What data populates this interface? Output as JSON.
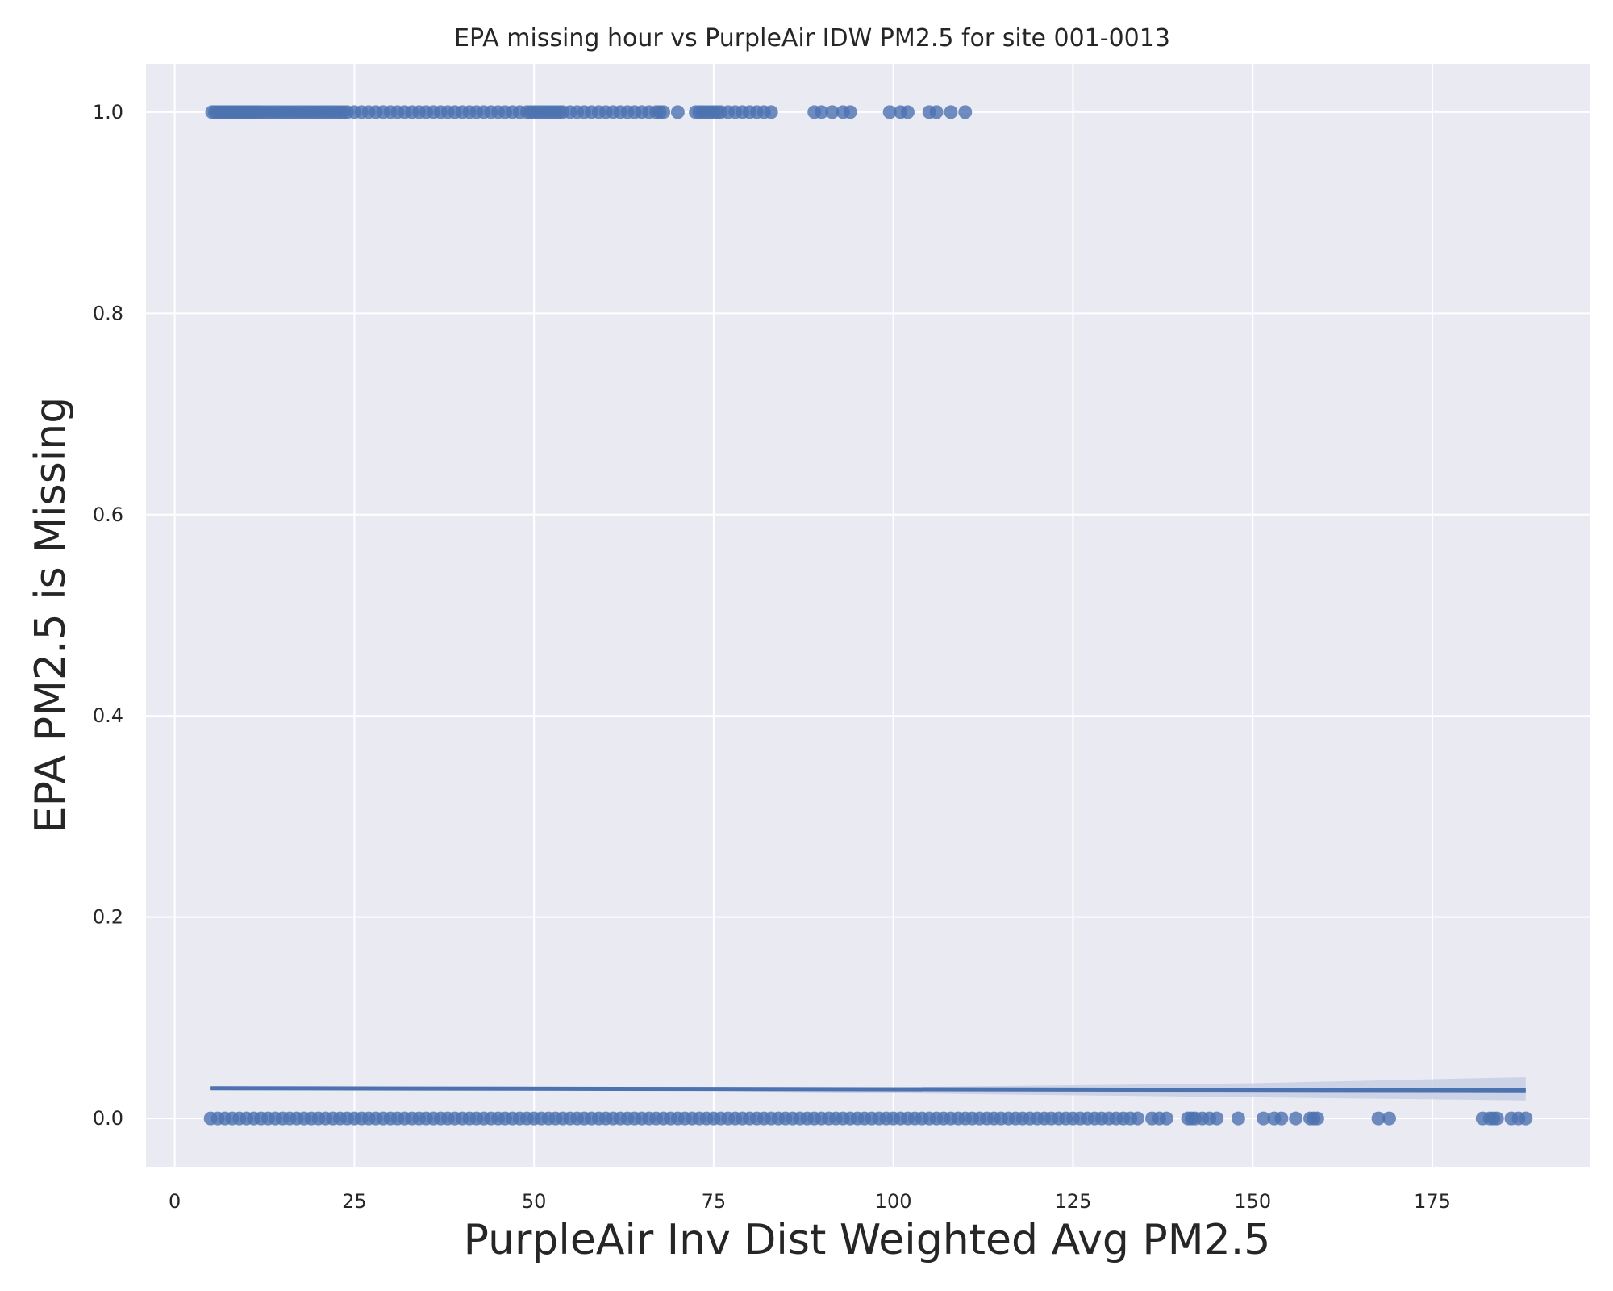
{
  "chart_data": {
    "type": "scatter",
    "title": "EPA missing hour vs PurpleAir IDW PM2.5 for site 001-0013",
    "xlabel": "PurpleAir Inv Dist Weighted Avg PM2.5",
    "ylabel": "EPA PM2.5 is Missing",
    "xlim": [
      -4,
      197
    ],
    "ylim": [
      -0.048,
      1.048
    ],
    "xticks": [
      0,
      25,
      50,
      75,
      100,
      125,
      150,
      175
    ],
    "xtick_labels": [
      "0",
      "25",
      "50",
      "75",
      "100",
      "125",
      "150",
      "175"
    ],
    "yticks": [
      0.0,
      0.2,
      0.4,
      0.6,
      0.8,
      1.0
    ],
    "ytick_labels": [
      "0.0",
      "0.2",
      "0.4",
      "0.6",
      "0.8",
      "1.0"
    ],
    "grid": true,
    "colors": {
      "background": "#eaeaf2",
      "grid": "#ffffff",
      "points": "#4c72b0",
      "fit_line": "#4c72b0",
      "ci_band": "#c8cfe4"
    },
    "series": [
      {
        "y": 1,
        "x": [
          5.2,
          5.6,
          6,
          6.4,
          6.8,
          7.2,
          7.6,
          8,
          8.4,
          8.8,
          9.2,
          9.6,
          10,
          10.4,
          10.8,
          11.2,
          11.6,
          12,
          12.5,
          13,
          13.5,
          14,
          14.5,
          15,
          15.5,
          16,
          16.5,
          17,
          17.5,
          18,
          18.5,
          19,
          19.5,
          20,
          20.5,
          21,
          21.5,
          22,
          22.5,
          23,
          23.5,
          24,
          25,
          26,
          27,
          28,
          29,
          30,
          31,
          32,
          33,
          34,
          35,
          36,
          37,
          38,
          39,
          40,
          41,
          42,
          43,
          44,
          45,
          46,
          47,
          48,
          49,
          49.5,
          50,
          50.5,
          51,
          51.5,
          52,
          52.5,
          53,
          53.5,
          54,
          55,
          56,
          57,
          58,
          59,
          60,
          61,
          62,
          63,
          64,
          65,
          66,
          67,
          67.5,
          68,
          70,
          72.5,
          73,
          73.5,
          74,
          74.5,
          75,
          75.5,
          76,
          77,
          78,
          79,
          80,
          81,
          82,
          83,
          89,
          90,
          91.5,
          93,
          94,
          99.5,
          101,
          102,
          105,
          106,
          108,
          110
        ]
      },
      {
        "y": 0,
        "x": [
          5,
          6,
          7,
          8,
          9,
          10,
          11,
          12,
          13,
          14,
          15,
          16,
          17,
          18,
          19,
          20,
          21,
          22,
          23,
          24,
          25,
          26,
          27,
          28,
          29,
          30,
          31,
          32,
          33,
          34,
          35,
          36,
          37,
          38,
          39,
          40,
          41,
          42,
          43,
          44,
          45,
          46,
          47,
          48,
          49,
          50,
          51,
          52,
          53,
          54,
          55,
          56,
          57,
          58,
          59,
          60,
          61,
          62,
          63,
          64,
          65,
          66,
          67,
          68,
          69,
          70,
          71,
          72,
          73,
          74,
          75,
          76,
          77,
          78,
          79,
          80,
          81,
          82,
          83,
          84,
          85,
          86,
          87,
          88,
          89,
          90,
          91,
          92,
          93,
          94,
          95,
          96,
          97,
          98,
          99,
          100,
          101,
          102,
          103,
          104,
          105,
          106,
          107,
          108,
          109,
          110,
          111,
          112,
          113,
          114,
          115,
          116,
          117,
          118,
          119,
          120,
          121,
          122,
          123,
          124,
          125,
          126,
          127,
          128,
          129,
          130,
          131,
          132,
          133,
          134,
          136,
          137,
          138,
          141,
          141.5,
          142,
          143,
          144,
          145,
          148,
          151.5,
          153,
          154,
          156,
          158,
          158.5,
          159,
          167.5,
          169,
          182,
          183,
          183.5,
          184,
          186,
          187,
          188
        ]
      }
    ],
    "fit_line": {
      "x": [
        5,
        188
      ],
      "y": [
        0.03,
        0.028
      ]
    },
    "ci_band": {
      "x": [
        5,
        60,
        100,
        150,
        188
      ],
      "lower": [
        0.029,
        0.0285,
        0.025,
        0.021,
        0.018
      ],
      "upper": [
        0.031,
        0.0305,
        0.031,
        0.035,
        0.041
      ]
    }
  }
}
